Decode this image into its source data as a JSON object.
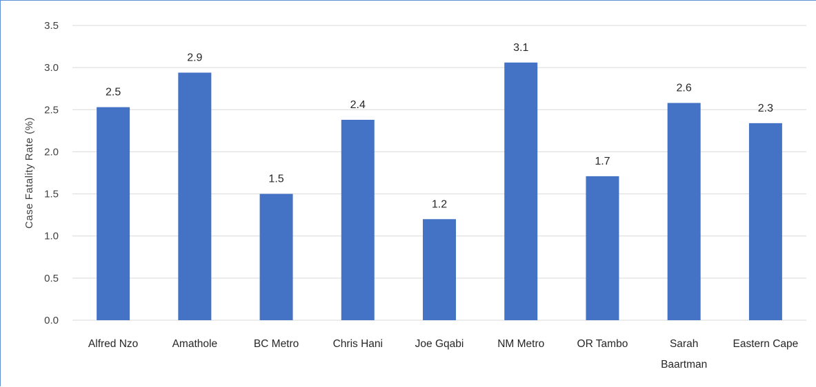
{
  "chart_data": {
    "type": "bar",
    "categories": [
      "Alfred Nzo",
      "Amathole",
      "BC Metro",
      "Chris Hani",
      "Joe Gqabi",
      "NM Metro",
      "OR Tambo",
      "Sarah Baartman",
      "Eastern Cape"
    ],
    "category_lines": [
      [
        "Alfred Nzo"
      ],
      [
        "Amathole"
      ],
      [
        "BC Metro"
      ],
      [
        "Chris Hani"
      ],
      [
        "Joe Gqabi"
      ],
      [
        "NM Metro"
      ],
      [
        "OR Tambo"
      ],
      [
        "Sarah",
        "Baartman"
      ],
      [
        "Eastern Cape"
      ]
    ],
    "values": [
      2.53,
      2.94,
      1.5,
      2.38,
      1.2,
      3.06,
      1.71,
      2.58,
      2.34
    ],
    "data_labels": [
      "2.5",
      "2.9",
      "1.5",
      "2.4",
      "1.2",
      "3.1",
      "1.7",
      "2.6",
      "2.3"
    ],
    "ylabel": "Case Fatality Rate (%)",
    "xlabel": "",
    "title": "",
    "ylim": [
      0,
      3.5
    ],
    "yticks": [
      0.0,
      0.5,
      1.0,
      1.5,
      2.0,
      2.5,
      3.0,
      3.5
    ],
    "ytick_labels": [
      "0.0",
      "0.5",
      "1.0",
      "1.5",
      "2.0",
      "2.5",
      "3.0",
      "3.5"
    ],
    "grid": true,
    "colors": {
      "bar": "#4472c4",
      "grid": "#d9d9d9",
      "border": "#5b8fd6"
    }
  }
}
